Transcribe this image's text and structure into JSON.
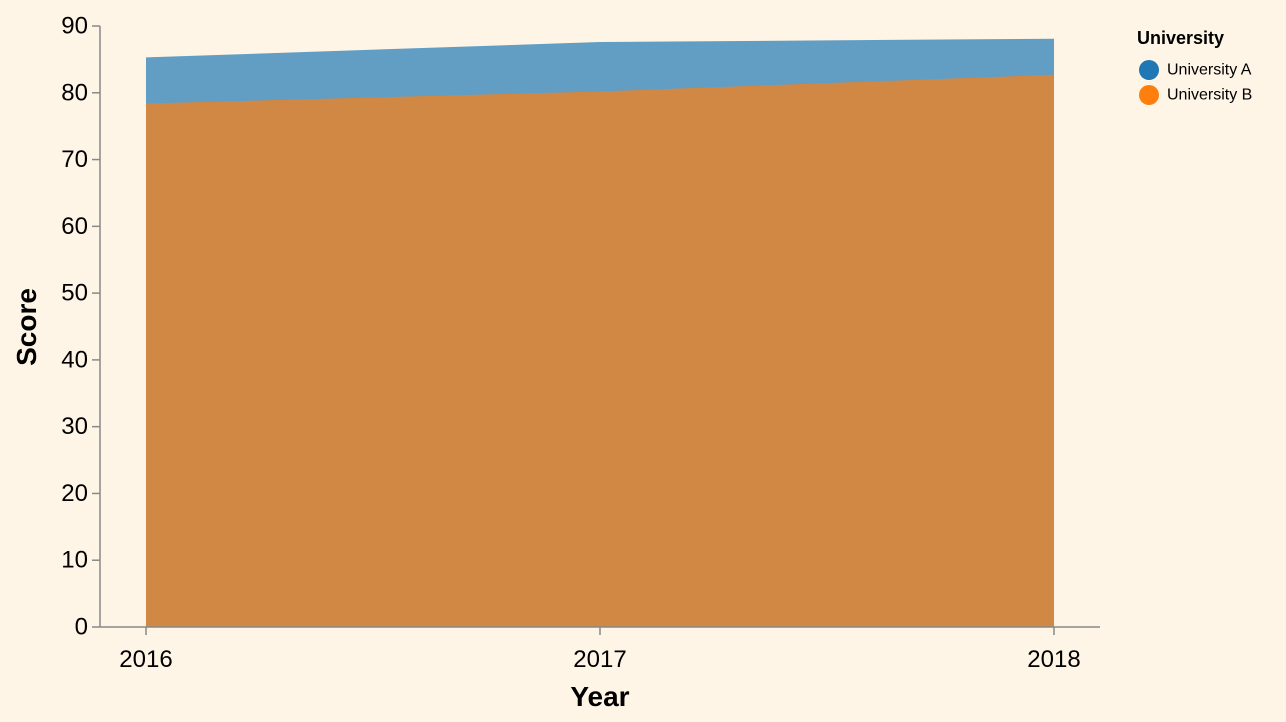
{
  "colors": {
    "background": "#fff5e6",
    "axis": "#888888",
    "university_a": "#1f77b4",
    "university_b": "#ff7f0e"
  },
  "chart_data": {
    "type": "area",
    "stacking": "none",
    "x": [
      2016,
      2017,
      2018
    ],
    "xlabel": "Year",
    "ylabel": "Score",
    "ylim": [
      0,
      90
    ],
    "yticks": [
      0,
      10,
      20,
      30,
      40,
      50,
      60,
      70,
      80,
      90
    ],
    "grid": false,
    "legend": {
      "title": "University",
      "placement": "top-right"
    },
    "series": [
      {
        "name": "University A",
        "color": "#1f77b4",
        "opacity": 0.7,
        "values": [
          85.3,
          87.6,
          88.1
        ]
      },
      {
        "name": "University B",
        "color": "#ff7f0e",
        "opacity": 0.7,
        "values": [
          78.4,
          80.2,
          82.7
        ]
      }
    ]
  }
}
